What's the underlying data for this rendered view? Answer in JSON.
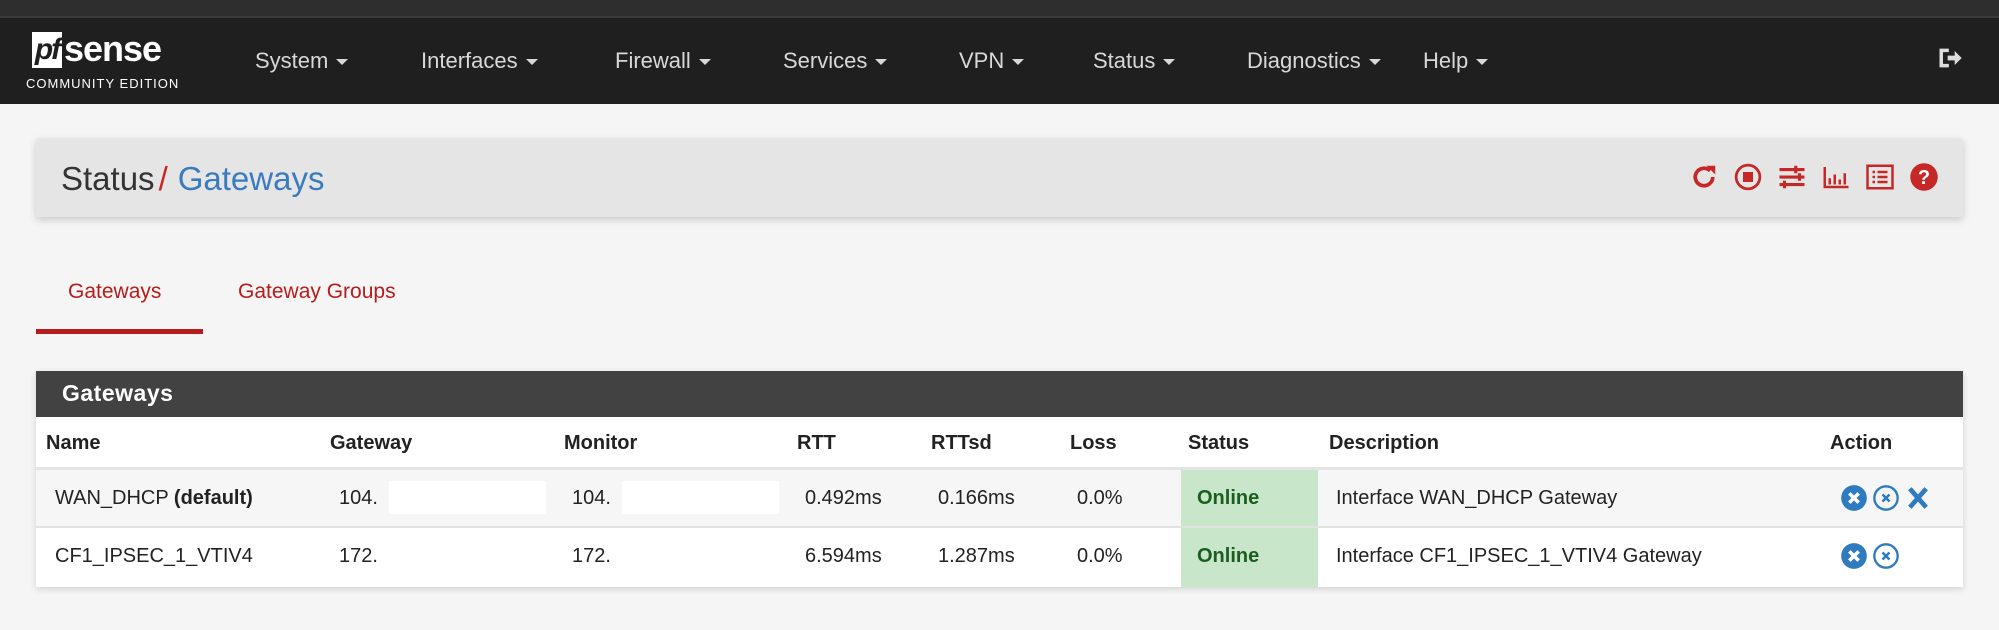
{
  "brand": {
    "logo_text": "pfsense",
    "edition": "COMMUNITY EDITION"
  },
  "nav": {
    "items": [
      "System",
      "Interfaces",
      "Firewall",
      "Services",
      "VPN",
      "Status",
      "Diagnostics",
      "Help"
    ],
    "logout_icon": "sign-out-icon"
  },
  "breadcrumb": {
    "parent": "Status",
    "separator": "/",
    "current": "Gateways"
  },
  "header_icons": [
    "refresh-icon",
    "stop-circle-icon",
    "sliders-icon",
    "bar-chart-icon",
    "list-alt-icon",
    "question-circle-icon"
  ],
  "tabs": [
    {
      "label": "Gateways",
      "active": true
    },
    {
      "label": "Gateway Groups",
      "active": false
    }
  ],
  "panel": {
    "title": "Gateways",
    "columns": [
      "Name",
      "Gateway",
      "Monitor",
      "RTT",
      "RTTsd",
      "Loss",
      "Status",
      "Description",
      "Action"
    ],
    "rows": [
      {
        "name": "WAN_DHCP",
        "name_suffix": "(default)",
        "gateway": "104.",
        "monitor": "104.",
        "rtt": "0.492ms",
        "rttsd": "0.166ms",
        "loss": "0.0%",
        "status": "Online",
        "description": "Interface WAN_DHCP Gateway",
        "actions": [
          "times-circle-icon",
          "times-circle-outline-icon",
          "times-icon"
        ]
      },
      {
        "name": "CF1_IPSEC_1_VTIV4",
        "gateway": "172.",
        "monitor": "172.",
        "rtt": "6.594ms",
        "rttsd": "1.287ms",
        "loss": "0.0%",
        "status": "Online",
        "description": "Interface CF1_IPSEC_1_VTIV4 Gateway",
        "actions": [
          "times-circle-icon",
          "times-circle-outline-icon"
        ]
      }
    ]
  },
  "colors": {
    "accent_red": "#b71c1c",
    "link_blue": "#3a7bbf",
    "online_bg": "#c8e6c9",
    "online_text": "#1b5e20",
    "navbar": "#1f1f1f"
  }
}
